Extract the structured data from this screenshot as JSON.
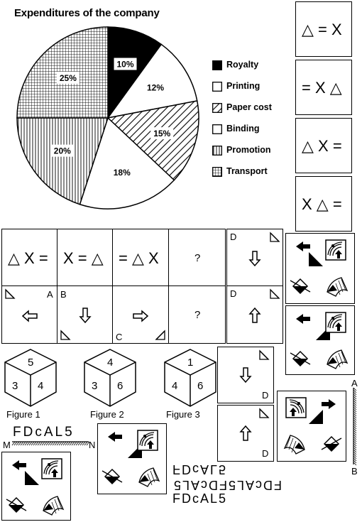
{
  "chart_data": {
    "type": "pie",
    "title": "Expenditures of the company",
    "slices": [
      {
        "name": "Royalty",
        "value": 10,
        "label": "10%",
        "pattern": "solid-black"
      },
      {
        "name": "Printing",
        "value": 12,
        "label": "12%",
        "pattern": "white"
      },
      {
        "name": "Paper cost",
        "value": 15,
        "label": "15%",
        "pattern": "diagonal-hatch"
      },
      {
        "name": "Binding",
        "value": 18,
        "label": "18%",
        "pattern": "white"
      },
      {
        "name": "Promotion",
        "value": 20,
        "label": "20%",
        "pattern": "vertical-lines"
      },
      {
        "name": "Transport",
        "value": 25,
        "label": "25%",
        "pattern": "grid"
      }
    ],
    "legend": [
      {
        "name": "Royalty",
        "pattern": "solid-black"
      },
      {
        "name": "Printing",
        "pattern": "white"
      },
      {
        "name": "Paper cost",
        "pattern": "diagonal-hatch"
      },
      {
        "name": "Binding",
        "pattern": "white"
      },
      {
        "name": "Promotion",
        "pattern": "vertical-lines"
      },
      {
        "name": "Transport",
        "pattern": "grid"
      }
    ],
    "legend_position": "right"
  },
  "options_right": [
    "△ = X",
    "= X △",
    "△ X =",
    "X △ ="
  ],
  "series_row": [
    "△ X =",
    "X = △",
    "= △ X",
    "?"
  ],
  "arrow_row": {
    "letters": {
      "a": "A",
      "b": "B",
      "c": "C"
    },
    "question": "?"
  },
  "d_boxes": {
    "letter": "D"
  },
  "cubes": [
    {
      "label": "Figure 1",
      "top": "5",
      "left": "3",
      "right": "4"
    },
    {
      "label": "Figure 2",
      "top": "4",
      "left": "3",
      "right": "6"
    },
    {
      "label": "Figure 3",
      "top": "1",
      "left": "4",
      "right": "6"
    }
  ],
  "mirror": {
    "word": "FDcAL5",
    "m": "M",
    "n": "N",
    "a": "A",
    "b": "B",
    "option_line1": "FDcAL5",
    "option_line2": "FDcAL5FDcAL5",
    "option_line3": "FDcAL5"
  },
  "colors": {
    "ink": "#000000",
    "paper": "#ffffff"
  }
}
